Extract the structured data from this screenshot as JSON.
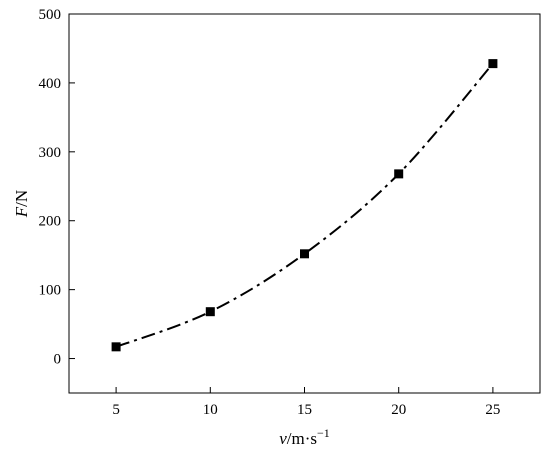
{
  "chart_data": {
    "type": "line",
    "title": "",
    "xlabel": "v/m·s⁻¹",
    "xlabel_parts": {
      "var": "v",
      "unit": "/m·s",
      "exp": "−1"
    },
    "ylabel": "F/N",
    "ylabel_parts": {
      "var": "F",
      "unit": "/N"
    },
    "xlim": [
      2.5,
      27.5
    ],
    "ylim": [
      -50,
      500
    ],
    "xticks": [
      5,
      10,
      15,
      20,
      25
    ],
    "yticks": [
      0,
      100,
      200,
      300,
      400,
      500
    ],
    "grid": false,
    "legend": "none",
    "series": [
      {
        "x": [
          5,
          10,
          15,
          20,
          25
        ],
        "y": [
          17,
          68,
          152,
          268,
          428
        ],
        "marker": "square",
        "line_style": "dash-dot",
        "color": "#000000"
      }
    ]
  }
}
